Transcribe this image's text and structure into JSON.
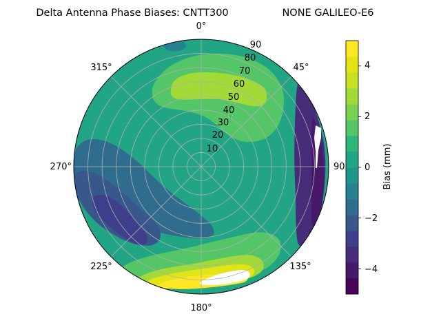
{
  "chart_data": {
    "type": "heatmap",
    "projection": "polar",
    "title": "Delta Antenna Phase Biases: CNTT300",
    "subtitle": "NONE GALILEO-E6",
    "azimuth_labels": [
      {
        "azimuth": 0,
        "label": "0°"
      },
      {
        "azimuth": 45,
        "label": "45°"
      },
      {
        "azimuth": 90,
        "label": "90°"
      },
      {
        "azimuth": 135,
        "label": "135°"
      },
      {
        "azimuth": 180,
        "label": "180°"
      },
      {
        "azimuth": 225,
        "label": "225°"
      },
      {
        "azimuth": 270,
        "label": "270°"
      },
      {
        "azimuth": 315,
        "label": "315°"
      }
    ],
    "radial_labels": [
      "10",
      "20",
      "30",
      "40",
      "50",
      "60",
      "70",
      "80",
      "90"
    ],
    "radial_range": [
      0,
      90
    ],
    "grid": true,
    "colorbar": {
      "label": "Bias (mm)",
      "range": [
        -5,
        5
      ],
      "levels": [
        -5,
        -4.375,
        -3.75,
        -3.125,
        -2.5,
        -1.875,
        -1.25,
        -0.625,
        0,
        0.625,
        1.25,
        1.875,
        2.5,
        3.125,
        3.75,
        4.375,
        5
      ],
      "ticks": [
        "−4",
        "−2",
        "0",
        "2",
        "4"
      ],
      "tick_values": [
        -4,
        -2,
        0,
        2,
        4
      ],
      "colors": [
        "#450457",
        "#48186a",
        "#472c7a",
        "#3f3e8a",
        "#38588c",
        "#2f6c8e",
        "#26828e",
        "#1f958b",
        "#21a585",
        "#2fb47c",
        "#55c667",
        "#7ad151",
        "#a2da37",
        "#c7e020",
        "#e2e418",
        "#fde725"
      ]
    },
    "regions": [
      {
        "name": "background",
        "bias": 0.3
      },
      {
        "name": "north-band",
        "bias": 1.5
      },
      {
        "name": "northeast-high",
        "bias": 2.7
      },
      {
        "name": "northwest-low",
        "bias": -0.7
      },
      {
        "name": "west-low",
        "bias": -1.6
      },
      {
        "name": "southwest-low",
        "bias": -2.3
      },
      {
        "name": "southwest-core",
        "bias": -2.8
      },
      {
        "name": "east-edge-low",
        "bias": -3.2
      },
      {
        "name": "east-edge-min",
        "bias": -4.3
      },
      {
        "name": "south-band",
        "bias": 1.3
      },
      {
        "name": "south-high",
        "bias": 3.0
      },
      {
        "name": "south-peak",
        "bias": 4.2
      },
      {
        "name": "south-max",
        "bias": 4.8
      },
      {
        "name": "missing-data",
        "bias": null
      }
    ]
  }
}
